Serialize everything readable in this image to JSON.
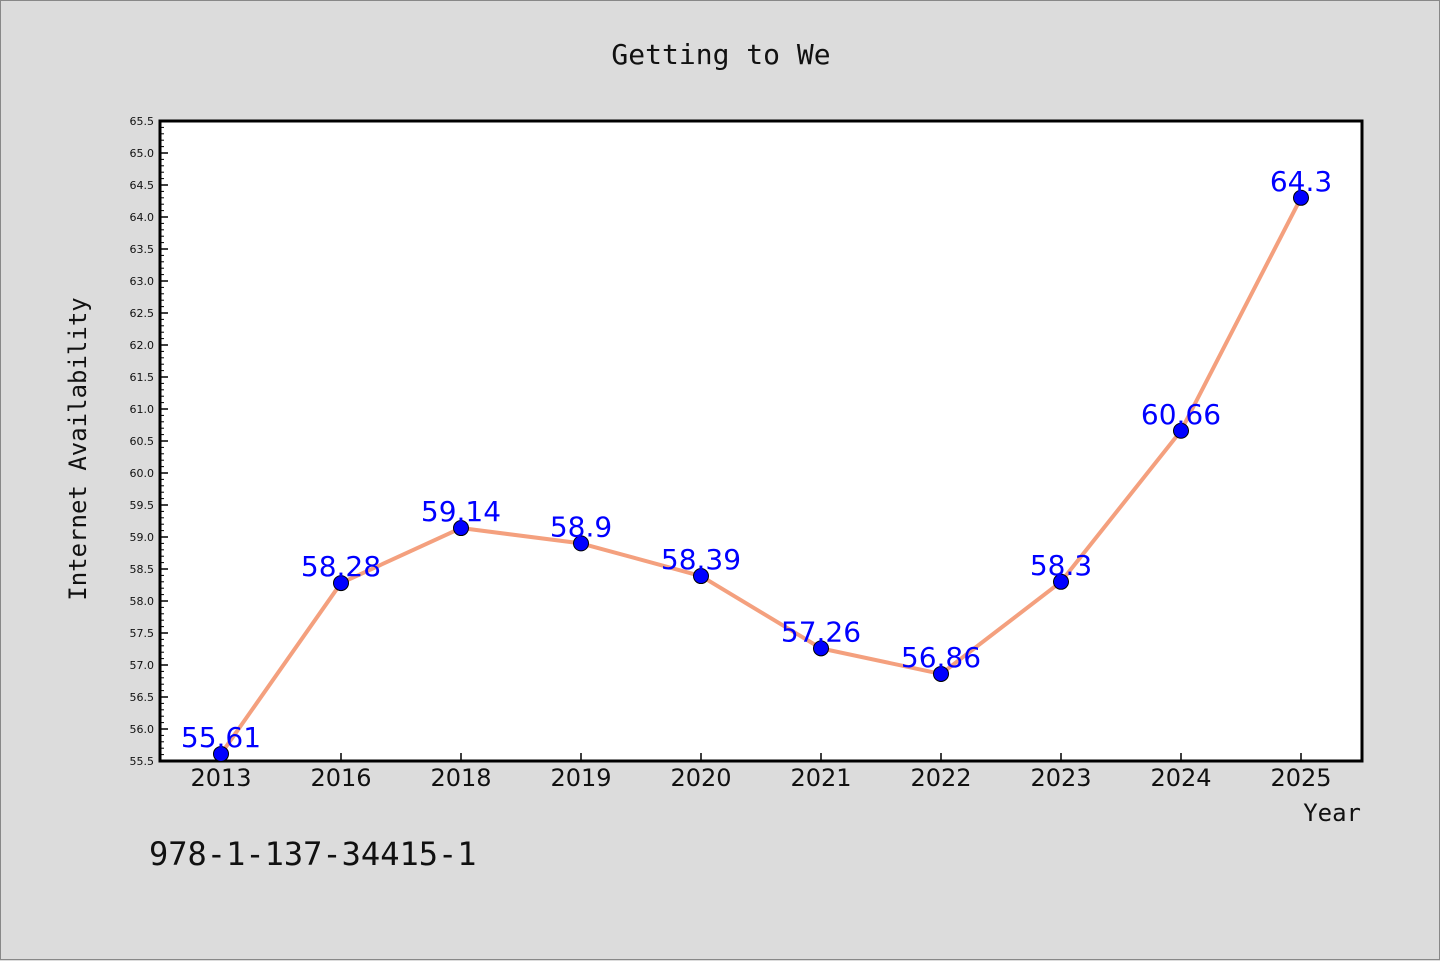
{
  "chart_data": {
    "type": "line",
    "title": "Getting to We",
    "xlabel": "Year",
    "ylabel": "Internet Availability",
    "categories": [
      "2013",
      "2016",
      "2018",
      "2019",
      "2020",
      "2021",
      "2022",
      "2023",
      "2024",
      "2025"
    ],
    "values": [
      55.61,
      58.28,
      59.14,
      58.9,
      58.39,
      57.26,
      56.86,
      58.3,
      60.66,
      64.3
    ],
    "data_labels": [
      "55.61",
      "58.28",
      "59.14",
      "58.9",
      "58.39",
      "57.26",
      "56.86",
      "58.3",
      "60.66",
      "64.3"
    ],
    "ylim": [
      55.5,
      65.5
    ],
    "yticks": [
      "55.5",
      "56.0",
      "56.5",
      "57.0",
      "57.5",
      "58.0",
      "58.5",
      "59.0",
      "59.5",
      "60.0",
      "60.5",
      "61.0",
      "61.5",
      "62.0",
      "62.5",
      "63.0",
      "63.5",
      "64.0",
      "64.5",
      "65.0",
      "65.5"
    ],
    "grid": false,
    "line_color": "#f4a07e",
    "marker_color": "#0000ff",
    "label_color": "#0000ff",
    "background": "#dcdcdc",
    "plot_background": "#ffffff"
  },
  "footer": {
    "isbn": "978-1-137-34415-1"
  }
}
